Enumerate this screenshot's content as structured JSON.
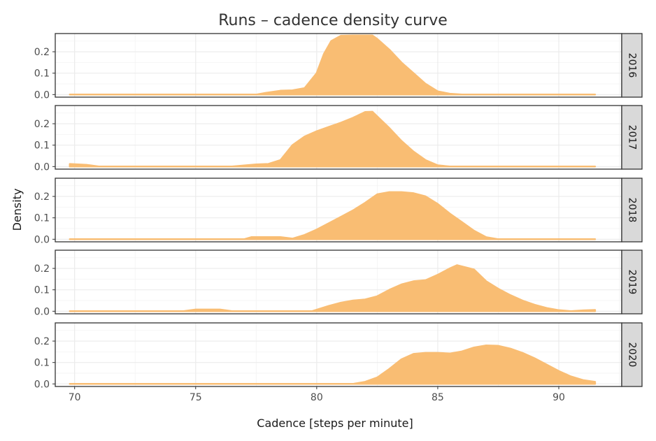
{
  "chart_data": {
    "type": "area",
    "title": "Runs – cadence density curve",
    "xlabel": "Cadence [steps per minute]",
    "ylabel": "Density",
    "xlim": [
      69.2,
      92.6
    ],
    "ylim": [
      -0.012,
      0.285
    ],
    "x_ticks": [
      70,
      75,
      80,
      85,
      90
    ],
    "y_ticks": [
      0.0,
      0.1,
      0.2
    ],
    "y_tick_labels": [
      "0.0",
      "0.1",
      "0.2"
    ],
    "grid": true,
    "facet_by": "year",
    "fill_color": "#f9bd73",
    "panels": [
      {
        "year": "2016",
        "x": [
          69.8,
          77.5,
          78.0,
          78.5,
          79.0,
          79.5,
          80.0,
          80.3,
          80.6,
          81.0,
          81.5,
          82.0,
          82.3,
          82.5,
          83.0,
          83.5,
          84.0,
          84.5,
          85.0,
          85.5,
          86.0,
          91.5
        ],
        "y": [
          0.0,
          0.0,
          0.01,
          0.018,
          0.02,
          0.03,
          0.1,
          0.19,
          0.25,
          0.275,
          0.276,
          0.276,
          0.276,
          0.26,
          0.21,
          0.15,
          0.1,
          0.05,
          0.015,
          0.004,
          0.0,
          0.0
        ]
      },
      {
        "year": "2017",
        "x": [
          69.8,
          70.5,
          71.0,
          76.5,
          77.5,
          78.0,
          78.5,
          79.0,
          79.5,
          80.0,
          80.5,
          81.0,
          81.5,
          82.0,
          82.3,
          83.0,
          83.5,
          84.0,
          84.5,
          85.0,
          85.5,
          91.5
        ],
        "y": [
          0.012,
          0.008,
          0.0,
          0.0,
          0.01,
          0.012,
          0.03,
          0.1,
          0.14,
          0.165,
          0.185,
          0.205,
          0.228,
          0.255,
          0.256,
          0.18,
          0.12,
          0.07,
          0.03,
          0.006,
          0.0,
          0.0
        ]
      },
      {
        "year": "2018",
        "x": [
          69.8,
          77.0,
          77.3,
          78.5,
          79.0,
          79.5,
          80.0,
          80.5,
          81.0,
          81.5,
          82.0,
          82.5,
          83.0,
          83.5,
          84.0,
          84.5,
          85.0,
          85.5,
          86.0,
          86.5,
          87.0,
          87.5,
          91.5
        ],
        "y": [
          0.0,
          0.0,
          0.01,
          0.01,
          0.003,
          0.02,
          0.045,
          0.075,
          0.105,
          0.135,
          0.17,
          0.21,
          0.22,
          0.22,
          0.215,
          0.2,
          0.165,
          0.12,
          0.08,
          0.04,
          0.01,
          0.0,
          0.0
        ]
      },
      {
        "year": "2019",
        "x": [
          69.8,
          74.5,
          75.0,
          76.0,
          76.5,
          79.8,
          80.5,
          81.0,
          81.5,
          82.0,
          82.5,
          83.0,
          83.5,
          84.0,
          84.5,
          85.0,
          85.5,
          85.8,
          86.5,
          87.0,
          87.5,
          88.0,
          88.5,
          89.0,
          89.5,
          90.0,
          90.5,
          91.0,
          91.5
        ],
        "y": [
          0.0,
          0.0,
          0.008,
          0.008,
          0.0,
          0.0,
          0.025,
          0.04,
          0.05,
          0.055,
          0.07,
          0.1,
          0.125,
          0.14,
          0.145,
          0.17,
          0.2,
          0.215,
          0.195,
          0.14,
          0.105,
          0.075,
          0.05,
          0.03,
          0.015,
          0.005,
          0.0,
          0.004,
          0.006
        ]
      },
      {
        "year": "2020",
        "x": [
          69.8,
          81.5,
          82.0,
          82.5,
          83.0,
          83.5,
          84.0,
          84.5,
          85.0,
          85.5,
          86.0,
          86.5,
          87.0,
          87.5,
          88.0,
          88.5,
          89.0,
          89.5,
          90.0,
          90.5,
          91.0,
          91.5
        ],
        "y": [
          0.0,
          0.0,
          0.01,
          0.03,
          0.07,
          0.115,
          0.14,
          0.145,
          0.145,
          0.142,
          0.152,
          0.17,
          0.18,
          0.178,
          0.165,
          0.145,
          0.12,
          0.09,
          0.06,
          0.035,
          0.018,
          0.01
        ]
      }
    ]
  }
}
